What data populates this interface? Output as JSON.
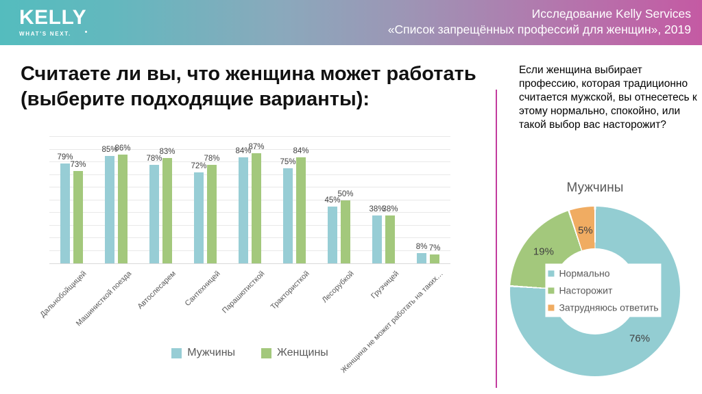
{
  "header": {
    "brand": "KELLY",
    "tagline": "WHAT'S NEXT.",
    "study_line1": "Исследование Kelly Services",
    "study_line2": "«Список запрещённых профессий для женщин», 2019"
  },
  "left_panel": {
    "title": "Считаете ли вы, что женщина может работать (выберите подходящие варианты):"
  },
  "right_panel": {
    "question": "Если женщина выбирает профессию, которая традиционно считается мужской, вы отнесетесь к этому нормально, спокойно, или такой выбор вас насторожит?"
  },
  "chart_data": [
    {
      "type": "bar",
      "title": "",
      "categories": [
        "Дальнобойщицей",
        "Машинисткой поезда",
        "Автослесарем",
        "Сантехницей",
        "Парашютисткой",
        "Трактористкой",
        "Лесорубкой",
        "Грузчицей",
        "Женщина не может работать на таких…"
      ],
      "series": [
        {
          "name": "Мужчины",
          "color": "#97CDD5",
          "values": [
            79,
            85,
            78,
            72,
            84,
            75,
            45,
            38,
            8
          ]
        },
        {
          "name": "Женщины",
          "color": "#A3C87C",
          "values": [
            73,
            86,
            83,
            78,
            87,
            84,
            50,
            38,
            7
          ]
        }
      ],
      "xlabel": "",
      "ylabel": "",
      "ylim": [
        0,
        100
      ],
      "grid": true,
      "gridline_step": 10,
      "value_suffix": "%",
      "legend_position": "bottom"
    },
    {
      "type": "pie",
      "subtype": "donut",
      "title": "Мужчины",
      "slices": [
        {
          "label": "Нормально",
          "value": 76,
          "color": "#93CDD2"
        },
        {
          "label": "Насторожит",
          "value": 19,
          "color": "#A3C87C"
        },
        {
          "label": "Затрудняюсь ответить",
          "value": 5,
          "color": "#F0AC62"
        }
      ],
      "value_suffix": "%",
      "start_angle_deg": 0,
      "direction": "clockwise",
      "legend_position": "center"
    }
  ],
  "colors": {
    "divider": "#C23A9E",
    "header_gradient_left": "#54BCBE",
    "header_gradient_right": "#C45AA3",
    "grid_line": "#E8E8E8",
    "axis_line": "#D9D9D9",
    "label_gray": "#595959",
    "value_gray": "#404040"
  }
}
